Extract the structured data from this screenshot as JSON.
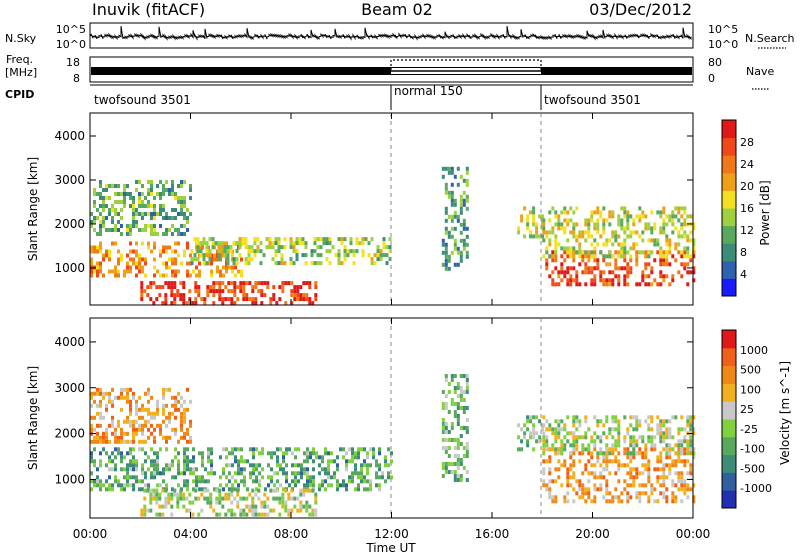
{
  "header": {
    "title": "Inuvik (fitACF)",
    "beam": "Beam 02",
    "date": "03/Dec/2012"
  },
  "top_strip": {
    "nsky_label": "N.Sky",
    "nsky_ticks": [
      "10^5",
      "10^0"
    ],
    "nsearch_label": "N.Search",
    "nsearch_ticks": [
      "10^5",
      "10^0"
    ],
    "freq_label": "Freq.",
    "freq_unit": "[MHz]",
    "freq_ticks": [
      "18",
      "8"
    ],
    "nave_label": "Nave",
    "nave_ticks": [
      "80",
      "0"
    ],
    "cpid_label": "CPID",
    "cpid_segments": [
      {
        "label": "twofsound 3501",
        "start_hour": 0,
        "end_hour": 12
      },
      {
        "label": "normal 150",
        "start_hour": 12,
        "end_hour": 18
      },
      {
        "label": "twofsound 3501",
        "start_hour": 18,
        "end_hour": 24
      }
    ]
  },
  "axes": {
    "xlabel": "Time UT",
    "ylabel": "Slant Range [km]",
    "xticks": [
      "00:00",
      "04:00",
      "08:00",
      "12:00",
      "16:00",
      "20:00",
      "00:00"
    ],
    "yticks": [
      "1000",
      "2000",
      "3000",
      "4000"
    ]
  },
  "power_colorbar": {
    "label": "Power [dB]",
    "ticks": [
      "4",
      "8",
      "12",
      "16",
      "20",
      "24",
      "28"
    ],
    "colors": [
      "#1a1aff",
      "#3060b0",
      "#3c8c78",
      "#58a860",
      "#9fd040",
      "#f4e020",
      "#f0a018",
      "#f07818",
      "#f04818",
      "#e01818"
    ]
  },
  "velocity_colorbar": {
    "label": "Velocity [m s^-1]",
    "ticks": [
      "1000",
      "500",
      "100",
      "25",
      "-25",
      "-100",
      "-500",
      "-1000"
    ],
    "colors": [
      "#2030b0",
      "#3060a0",
      "#3c8c78",
      "#58a860",
      "#80d040",
      "#c8c8c8",
      "#f0b020",
      "#f08818",
      "#f06018",
      "#e01818"
    ]
  },
  "chart_data": {
    "type": "heatmap",
    "title": "Inuvik (fitACF)",
    "xlabel": "Time UT",
    "ylabel": "Slant Range [km]",
    "xlim": [
      0,
      24
    ],
    "ylim": [
      180,
      4500
    ],
    "panels": [
      {
        "name": "Power [dB]",
        "clim": [
          0,
          30
        ],
        "regions": [
          {
            "t0": 0,
            "t1": 6,
            "r0": 800,
            "r1": 1600,
            "level": 0.72
          },
          {
            "t0": 2,
            "t1": 9,
            "r0": 200,
            "r1": 700,
            "level": 0.88
          },
          {
            "t0": 4,
            "t1": 12,
            "r0": 1100,
            "r1": 1700,
            "level": 0.45
          },
          {
            "t0": 0,
            "t1": 4,
            "r0": 1800,
            "r1": 3000,
            "level": 0.35
          },
          {
            "t0": 14,
            "t1": 15,
            "r0": 1000,
            "r1": 3300,
            "level": 0.3
          },
          {
            "t0": 17,
            "t1": 18,
            "r0": 1700,
            "r1": 2400,
            "level": 0.5
          },
          {
            "t0": 18,
            "t1": 24,
            "r0": 600,
            "r1": 1400,
            "level": 0.85
          },
          {
            "t0": 18,
            "t1": 24,
            "r0": 1300,
            "r1": 2400,
            "level": 0.5
          }
        ]
      },
      {
        "name": "Velocity [m s^-1]",
        "clim": [
          -1000,
          1000
        ],
        "regions": [
          {
            "t0": 0,
            "t1": 12,
            "r0": 800,
            "r1": 1700,
            "level": 0.35
          },
          {
            "t0": 2,
            "t1": 9,
            "r0": 250,
            "r1": 800,
            "level": 0.5
          },
          {
            "t0": 0,
            "t1": 4,
            "r0": 1800,
            "r1": 3000,
            "level": 0.7
          },
          {
            "t0": 14,
            "t1": 15,
            "r0": 1000,
            "r1": 3300,
            "level": 0.4
          },
          {
            "t0": 17,
            "t1": 18,
            "r0": 1700,
            "r1": 2400,
            "level": 0.45
          },
          {
            "t0": 18,
            "t1": 24,
            "r0": 500,
            "r1": 1700,
            "level": 0.7
          },
          {
            "t0": 18,
            "t1": 24,
            "r0": 1600,
            "r1": 2400,
            "level": 0.5
          }
        ]
      }
    ]
  }
}
